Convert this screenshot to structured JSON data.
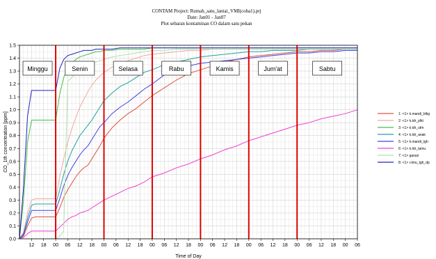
{
  "chart_data": {
    "type": "line",
    "title_lines": [
      "CONTAM Project: Rumah_satu_lantai_VMI(coba1).prj",
      "Date: Jan01 - Jan07",
      "Plot sebaran kontaminan CO dalam satu pekan"
    ],
    "xlabel": "Time of Day",
    "ylabel": "CO_1th concentration [ppm]",
    "xlim": [
      6,
      174
    ],
    "ylim": [
      0,
      1.5
    ],
    "yticks": [
      "0.0",
      "0.1",
      "0.2",
      "0.3",
      "0.4",
      "0.5",
      "0.6",
      "0.7",
      "0.8",
      "0.9",
      "1.0",
      "1.1",
      "1.2",
      "1.3",
      "1.4",
      "1.5"
    ],
    "xtick_labels": [
      "12",
      "18",
      "00",
      "06",
      "12",
      "18",
      "00",
      "06",
      "12",
      "18",
      "00",
      "06",
      "12",
      "18",
      "00",
      "06",
      "12",
      "18",
      "00",
      "06",
      "12",
      "18",
      "00",
      "06",
      "12",
      "18",
      "00",
      "06"
    ],
    "day_labels": [
      "Minggu",
      "Senin",
      "Selasa",
      "Rabu",
      "Kamis",
      "Jum'at",
      "Sabtu"
    ],
    "day_boundaries": [
      24,
      48,
      72,
      96,
      120,
      144
    ],
    "grid": true,
    "legend_position": "right",
    "series": [
      {
        "name": "1:   <1> k.mandi_blkg",
        "color": "#e05040",
        "x": [
          6,
          8,
          10,
          12,
          14,
          16,
          18,
          20,
          22,
          24,
          26,
          28,
          30,
          32,
          34,
          36,
          38,
          40,
          42,
          44,
          46,
          48,
          52,
          56,
          60,
          64,
          68,
          72,
          78,
          84,
          90,
          96,
          102,
          108,
          114,
          120,
          126,
          132,
          138,
          144,
          150,
          156,
          162,
          168,
          174
        ],
        "y": [
          0,
          0.02,
          0.1,
          0.16,
          0.17,
          0.17,
          0.17,
          0.17,
          0.17,
          0.17,
          0.24,
          0.32,
          0.38,
          0.43,
          0.48,
          0.52,
          0.55,
          0.57,
          0.62,
          0.67,
          0.72,
          0.78,
          0.86,
          0.92,
          0.97,
          1.01,
          1.06,
          1.11,
          1.17,
          1.23,
          1.28,
          1.31,
          1.34,
          1.37,
          1.39,
          1.41,
          1.42,
          1.43,
          1.44,
          1.45,
          1.45,
          1.46,
          1.46,
          1.47,
          1.47
        ]
      },
      {
        "name": "2:   <1> k.tdr_plkt",
        "color": "#f0a8a0",
        "x": [
          6,
          8,
          10,
          12,
          14,
          16,
          18,
          20,
          22,
          24,
          26,
          28,
          30,
          32,
          34,
          36,
          38,
          40,
          42,
          44,
          46,
          48,
          52,
          56,
          60,
          64,
          68,
          72,
          78,
          84,
          90,
          96,
          102,
          108,
          114,
          120,
          126,
          132,
          138,
          144,
          150,
          156,
          162,
          168,
          174
        ],
        "y": [
          0,
          0.05,
          0.2,
          0.3,
          0.31,
          0.31,
          0.31,
          0.31,
          0.31,
          0.31,
          0.48,
          0.62,
          0.75,
          0.85,
          0.94,
          1.02,
          1.08,
          1.14,
          1.19,
          1.23,
          1.26,
          1.29,
          1.33,
          1.36,
          1.38,
          1.4,
          1.42,
          1.43,
          1.44,
          1.45,
          1.46,
          1.46,
          1.47,
          1.47,
          1.47,
          1.47,
          1.47,
          1.47,
          1.47,
          1.47,
          1.47,
          1.47,
          1.47,
          1.47,
          1.47
        ]
      },
      {
        "name": "3:   <1> k.tdr_utm",
        "color": "#40c040",
        "x": [
          6,
          8,
          10,
          12,
          14,
          16,
          18,
          20,
          22,
          24,
          26,
          28,
          30,
          32,
          34,
          36,
          38,
          40,
          42,
          44,
          46,
          48,
          52,
          56,
          60,
          64,
          68,
          72,
          78,
          84,
          90,
          96,
          102,
          108,
          114,
          120,
          126,
          132,
          138,
          144,
          150,
          156,
          162,
          168,
          174
        ],
        "y": [
          0,
          0.3,
          0.75,
          0.92,
          0.92,
          0.92,
          0.92,
          0.92,
          0.92,
          0.92,
          1.12,
          1.25,
          1.32,
          1.36,
          1.39,
          1.41,
          1.42,
          1.43,
          1.44,
          1.45,
          1.45,
          1.46,
          1.46,
          1.47,
          1.47,
          1.47,
          1.47,
          1.48,
          1.48,
          1.48,
          1.48,
          1.48,
          1.48,
          1.48,
          1.48,
          1.48,
          1.48,
          1.48,
          1.48,
          1.48,
          1.48,
          1.48,
          1.48,
          1.48,
          1.48
        ]
      },
      {
        "name": "4:   <1> k.tdr_anak",
        "color": "#20a0a0",
        "x": [
          6,
          8,
          10,
          12,
          14,
          16,
          18,
          20,
          22,
          24,
          26,
          28,
          30,
          32,
          34,
          36,
          38,
          40,
          42,
          44,
          46,
          48,
          52,
          56,
          60,
          64,
          68,
          72,
          78,
          84,
          90,
          96,
          102,
          108,
          114,
          120,
          126,
          132,
          138,
          144,
          150,
          156,
          162,
          168,
          174
        ],
        "y": [
          0,
          0.04,
          0.16,
          0.26,
          0.27,
          0.27,
          0.27,
          0.27,
          0.27,
          0.27,
          0.38,
          0.5,
          0.6,
          0.68,
          0.74,
          0.8,
          0.84,
          0.88,
          0.92,
          0.97,
          1.02,
          1.07,
          1.13,
          1.18,
          1.21,
          1.25,
          1.29,
          1.31,
          1.35,
          1.37,
          1.39,
          1.41,
          1.42,
          1.43,
          1.44,
          1.45,
          1.45,
          1.46,
          1.46,
          1.46,
          1.47,
          1.47,
          1.47,
          1.47,
          1.47
        ]
      },
      {
        "name": "5:   <1> k.mandi_tgh",
        "color": "#4040e0",
        "x": [
          6,
          8,
          10,
          12,
          14,
          16,
          18,
          20,
          22,
          24,
          26,
          28,
          30,
          32,
          34,
          36,
          38,
          40,
          42,
          44,
          46,
          48,
          52,
          56,
          60,
          64,
          68,
          72,
          78,
          84,
          90,
          96,
          102,
          108,
          114,
          120,
          126,
          132,
          138,
          144,
          150,
          156,
          162,
          168,
          174
        ],
        "y": [
          0,
          0.03,
          0.13,
          0.22,
          0.22,
          0.22,
          0.22,
          0.22,
          0.22,
          0.22,
          0.31,
          0.41,
          0.49,
          0.55,
          0.6,
          0.65,
          0.69,
          0.72,
          0.77,
          0.82,
          0.87,
          0.9,
          0.97,
          1.02,
          1.06,
          1.11,
          1.16,
          1.2,
          1.27,
          1.31,
          1.34,
          1.36,
          1.37,
          1.38,
          1.39,
          1.4,
          1.41,
          1.42,
          1.43,
          1.44,
          1.44,
          1.45,
          1.45,
          1.46,
          1.46
        ]
      },
      {
        "name": "6:   <1> k.tdr_tamu",
        "color": "#f040d0",
        "x": [
          6,
          8,
          10,
          12,
          14,
          16,
          18,
          20,
          22,
          24,
          26,
          28,
          30,
          32,
          34,
          36,
          38,
          40,
          42,
          44,
          46,
          48,
          52,
          56,
          60,
          64,
          68,
          72,
          78,
          84,
          90,
          96,
          102,
          108,
          114,
          120,
          126,
          132,
          138,
          144,
          150,
          156,
          162,
          168,
          174
        ],
        "y": [
          0,
          0.01,
          0.04,
          0.06,
          0.06,
          0.06,
          0.06,
          0.06,
          0.06,
          0.06,
          0.09,
          0.12,
          0.15,
          0.17,
          0.18,
          0.2,
          0.21,
          0.22,
          0.24,
          0.26,
          0.28,
          0.3,
          0.33,
          0.36,
          0.39,
          0.41,
          0.44,
          0.48,
          0.51,
          0.55,
          0.58,
          0.62,
          0.65,
          0.69,
          0.72,
          0.76,
          0.79,
          0.82,
          0.85,
          0.88,
          0.9,
          0.93,
          0.95,
          0.97,
          1.0
        ]
      },
      {
        "name": "7:   <1> garasi",
        "color": "#b0e0b0",
        "x": [
          6,
          8,
          10,
          12,
          14,
          16,
          18,
          20,
          22,
          24,
          26,
          28,
          30,
          32,
          34,
          36,
          38,
          40,
          42,
          44,
          46,
          48,
          52,
          56,
          60,
          64,
          68,
          72,
          78,
          84,
          90,
          96,
          102,
          108,
          114,
          120,
          126,
          132,
          138,
          144,
          150,
          156,
          162,
          168,
          174
        ],
        "y": [
          0,
          0,
          0,
          0,
          0,
          0,
          0,
          0,
          0,
          0,
          0.02,
          0.06,
          1.22,
          1.25,
          1.28,
          1.3,
          1.32,
          1.34,
          1.36,
          1.37,
          1.38,
          1.39,
          1.41,
          1.42,
          1.43,
          1.44,
          1.45,
          1.46,
          1.46,
          1.47,
          1.47,
          1.47,
          1.47,
          1.47,
          1.47,
          1.47,
          1.47,
          1.47,
          1.47,
          1.47,
          1.47,
          1.47,
          1.47,
          1.47,
          1.47
        ]
      },
      {
        "name": "8:   <1> r.tmu_tgh_dp",
        "color": "#2020c0",
        "x": [
          6,
          8,
          10,
          12,
          14,
          16,
          18,
          20,
          22,
          24,
          26,
          28,
          30,
          32,
          34,
          36,
          38,
          40,
          42,
          44,
          46,
          48,
          52,
          56,
          60,
          64,
          68,
          72,
          78,
          84,
          90,
          96,
          102,
          108,
          114,
          120,
          126,
          132,
          138,
          144,
          150,
          156,
          162,
          168,
          174
        ],
        "y": [
          0,
          0.4,
          0.95,
          1.15,
          1.15,
          1.15,
          1.15,
          1.15,
          1.15,
          1.15,
          1.32,
          1.39,
          1.42,
          1.43,
          1.44,
          1.45,
          1.46,
          1.46,
          1.46,
          1.47,
          1.47,
          1.47,
          1.47,
          1.48,
          1.48,
          1.48,
          1.48,
          1.48,
          1.48,
          1.48,
          1.48,
          1.48,
          1.48,
          1.48,
          1.48,
          1.48,
          1.48,
          1.48,
          1.48,
          1.48,
          1.48,
          1.48,
          1.48,
          1.48,
          1.48
        ]
      }
    ]
  }
}
